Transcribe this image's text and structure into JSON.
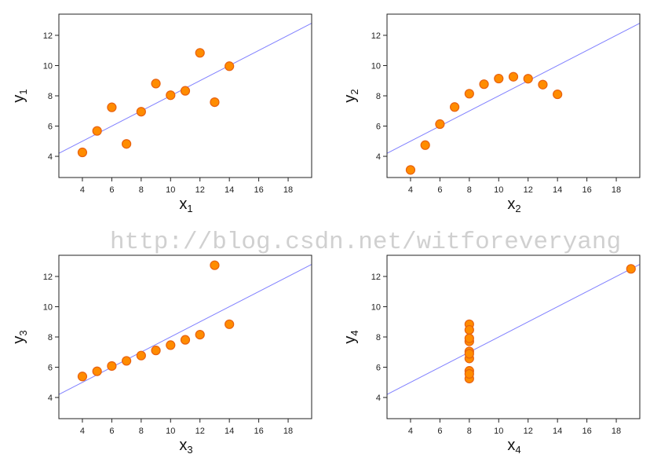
{
  "watermark": "http://blog.csdn.net/witforeveryang",
  "chart_data": [
    {
      "type": "scatter",
      "xlabel": "x",
      "xlabel_sub": "1",
      "ylabel": "y",
      "ylabel_sub": "1",
      "xlim": [
        2.4,
        19.6
      ],
      "ylim": [
        2.6,
        13.4
      ],
      "xticks": [
        4,
        6,
        8,
        10,
        12,
        14,
        16,
        18
      ],
      "yticks": [
        4,
        6,
        8,
        10,
        12
      ],
      "x": [
        10,
        8,
        13,
        9,
        11,
        14,
        6,
        4,
        12,
        7,
        5
      ],
      "y": [
        8.04,
        6.95,
        7.58,
        8.81,
        8.33,
        9.96,
        7.24,
        4.26,
        10.84,
        4.82,
        5.68
      ],
      "fit_line": {
        "intercept": 3.0,
        "slope": 0.5
      },
      "point_color": "#ff8c00",
      "point_edge": "#e8610f",
      "line_color": "#8080ff"
    },
    {
      "type": "scatter",
      "xlabel": "x",
      "xlabel_sub": "2",
      "ylabel": "y",
      "ylabel_sub": "2",
      "xlim": [
        2.4,
        19.6
      ],
      "ylim": [
        2.6,
        13.4
      ],
      "xticks": [
        4,
        6,
        8,
        10,
        12,
        14,
        16,
        18
      ],
      "yticks": [
        4,
        6,
        8,
        10,
        12
      ],
      "x": [
        10,
        8,
        13,
        9,
        11,
        14,
        6,
        4,
        12,
        7,
        5
      ],
      "y": [
        9.14,
        8.14,
        8.74,
        8.77,
        9.26,
        8.1,
        6.13,
        3.1,
        9.13,
        7.26,
        4.74
      ],
      "fit_line": {
        "intercept": 3.0,
        "slope": 0.5
      },
      "point_color": "#ff8c00",
      "point_edge": "#e8610f",
      "line_color": "#8080ff"
    },
    {
      "type": "scatter",
      "xlabel": "x",
      "xlabel_sub": "3",
      "ylabel": "y",
      "ylabel_sub": "3",
      "xlim": [
        2.4,
        19.6
      ],
      "ylim": [
        2.6,
        13.4
      ],
      "xticks": [
        4,
        6,
        8,
        10,
        12,
        14,
        16,
        18
      ],
      "yticks": [
        4,
        6,
        8,
        10,
        12
      ],
      "x": [
        10,
        8,
        13,
        9,
        11,
        14,
        6,
        4,
        12,
        7,
        5
      ],
      "y": [
        7.46,
        6.77,
        12.74,
        7.11,
        7.81,
        8.84,
        6.08,
        5.39,
        8.15,
        6.42,
        5.73
      ],
      "fit_line": {
        "intercept": 3.0,
        "slope": 0.5
      },
      "point_color": "#ff8c00",
      "point_edge": "#e8610f",
      "line_color": "#8080ff"
    },
    {
      "type": "scatter",
      "xlabel": "x",
      "xlabel_sub": "4",
      "ylabel": "y",
      "ylabel_sub": "4",
      "xlim": [
        2.4,
        19.6
      ],
      "ylim": [
        2.6,
        13.4
      ],
      "xticks": [
        4,
        6,
        8,
        10,
        12,
        14,
        16,
        18
      ],
      "yticks": [
        4,
        6,
        8,
        10,
        12
      ],
      "x": [
        8,
        8,
        8,
        8,
        8,
        8,
        8,
        19,
        8,
        8,
        8
      ],
      "y": [
        6.58,
        5.76,
        7.71,
        8.84,
        8.47,
        7.04,
        5.25,
        12.5,
        5.56,
        7.91,
        6.89
      ],
      "fit_line": {
        "intercept": 3.0,
        "slope": 0.5
      },
      "point_color": "#ff8c00",
      "point_edge": "#e8610f",
      "line_color": "#8080ff"
    }
  ]
}
